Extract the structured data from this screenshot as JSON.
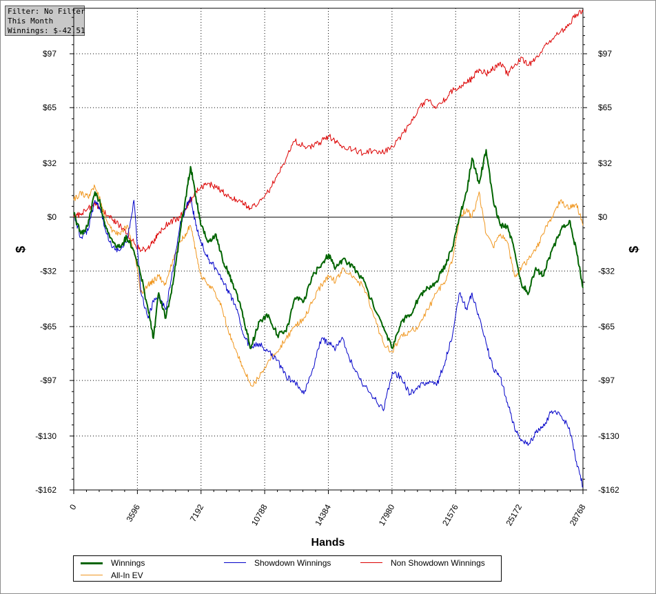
{
  "filter_box": {
    "line1": "Filter: No Filter",
    "line2": "This Month",
    "line3": "Winnings: $-42.51"
  },
  "chart_data": {
    "type": "line",
    "xlabel": "Hands",
    "ylabel": "$",
    "xlim": [
      0,
      28768
    ],
    "ylim": [
      -162,
      124
    ],
    "x_ticks": [
      0,
      3596,
      7192,
      10788,
      14384,
      17980,
      21576,
      25172,
      28768
    ],
    "x_tick_labels": [
      "0",
      "3596",
      "7192",
      "10788",
      "14384",
      "17980",
      "21576",
      "25172",
      "28768"
    ],
    "y_ticks": [
      -162,
      -130,
      -97,
      -65,
      -32,
      0,
      32,
      65,
      97
    ],
    "y_tick_labels": [
      "-$162",
      "-$130",
      "-$97",
      "-$65",
      "-$32",
      "$0",
      "$32",
      "$65",
      "$97"
    ],
    "grid": true,
    "legend_position": "bottom",
    "series": [
      {
        "name": "Winnings",
        "color": "#006400",
        "x": [
          0,
          400,
          800,
          1200,
          1500,
          1800,
          2200,
          2600,
          3000,
          3400,
          3800,
          4200,
          4500,
          4800,
          5200,
          5600,
          6000,
          6300,
          6600,
          6900,
          7200,
          7600,
          8000,
          8400,
          8800,
          9200,
          9600,
          10000,
          10500,
          11000,
          11500,
          12000,
          12500,
          13000,
          13500,
          14000,
          14400,
          14800,
          15200,
          15800,
          16400,
          17000,
          17500,
          18000,
          18500,
          19000,
          19500,
          20000,
          20500,
          21000,
          21400,
          21800,
          22200,
          22500,
          22900,
          23300,
          23700,
          24100,
          24500,
          24900,
          25300,
          25700,
          26100,
          26500,
          27000,
          27500,
          28000,
          28400,
          28768
        ],
        "y": [
          2,
          -10,
          -5,
          15,
          8,
          -5,
          -15,
          -18,
          -12,
          -20,
          -35,
          -55,
          -72,
          -45,
          -60,
          -40,
          -10,
          10,
          30,
          12,
          -5,
          -15,
          -10,
          -25,
          -35,
          -45,
          -60,
          -78,
          -62,
          -58,
          -70,
          -68,
          -48,
          -50,
          -35,
          -28,
          -22,
          -30,
          -25,
          -30,
          -38,
          -55,
          -65,
          -78,
          -62,
          -58,
          -48,
          -42,
          -38,
          -28,
          -18,
          0,
          15,
          35,
          20,
          40,
          10,
          -5,
          -5,
          -20,
          -40,
          -45,
          -30,
          -35,
          -20,
          -8,
          -2,
          -20,
          -42
        ]
      },
      {
        "name": "Showdown Winnings",
        "color": "#0000c8",
        "x": [
          0,
          400,
          800,
          1200,
          1500,
          1800,
          2200,
          2600,
          3000,
          3400,
          3800,
          4200,
          4500,
          4800,
          5200,
          5600,
          6000,
          6300,
          6600,
          6900,
          7200,
          7600,
          8000,
          8400,
          8800,
          9200,
          9600,
          10000,
          10500,
          11000,
          11500,
          12000,
          12500,
          13000,
          13500,
          14000,
          14400,
          14800,
          15200,
          15800,
          16400,
          17000,
          17500,
          18000,
          18500,
          19000,
          19500,
          20000,
          20500,
          21000,
          21400,
          21800,
          22200,
          22500,
          22900,
          23300,
          23700,
          24100,
          24500,
          24900,
          25300,
          25700,
          26100,
          26500,
          27000,
          27500,
          28000,
          28400,
          28768
        ],
        "y": [
          2,
          -12,
          -8,
          10,
          5,
          -8,
          -18,
          -20,
          -15,
          10,
          -45,
          -60,
          -50,
          -48,
          -55,
          -32,
          -5,
          5,
          12,
          -5,
          -15,
          -25,
          -30,
          -38,
          -45,
          -55,
          -70,
          -78,
          -75,
          -80,
          -85,
          -95,
          -98,
          -105,
          -90,
          -72,
          -75,
          -78,
          -72,
          -90,
          -100,
          -108,
          -115,
          -92,
          -95,
          -105,
          -100,
          -98,
          -100,
          -85,
          -70,
          -45,
          -55,
          -45,
          -60,
          -75,
          -90,
          -95,
          -110,
          -125,
          -132,
          -135,
          -128,
          -125,
          -115,
          -118,
          -125,
          -145,
          -160
        ]
      },
      {
        "name": "Non Showdown Winnings",
        "color": "#dc0000",
        "x": [
          0,
          400,
          800,
          1200,
          1500,
          1800,
          2200,
          2600,
          3000,
          3400,
          3800,
          4200,
          4500,
          4800,
          5200,
          5600,
          6000,
          6300,
          6600,
          6900,
          7200,
          7600,
          8000,
          8400,
          8800,
          9200,
          9600,
          10000,
          10500,
          11000,
          11500,
          12000,
          12500,
          13000,
          13500,
          14000,
          14400,
          14800,
          15200,
          15800,
          16400,
          17000,
          17500,
          18000,
          18500,
          19000,
          19500,
          20000,
          20500,
          21000,
          21400,
          21800,
          22200,
          22500,
          22900,
          23300,
          23700,
          24100,
          24500,
          24900,
          25300,
          25700,
          26100,
          26500,
          27000,
          27500,
          28000,
          28400,
          28768
        ],
        "y": [
          0,
          2,
          5,
          8,
          5,
          2,
          -2,
          -5,
          -10,
          -15,
          -20,
          -18,
          -15,
          -10,
          -5,
          -2,
          0,
          5,
          10,
          15,
          18,
          20,
          18,
          15,
          12,
          10,
          8,
          5,
          10,
          15,
          25,
          35,
          45,
          42,
          42,
          45,
          48,
          45,
          42,
          40,
          38,
          40,
          38,
          42,
          48,
          55,
          65,
          70,
          65,
          70,
          75,
          78,
          80,
          82,
          88,
          85,
          88,
          92,
          85,
          90,
          95,
          90,
          95,
          100,
          105,
          110,
          115,
          120,
          122
        ]
      },
      {
        "name": "All-In EV",
        "color": "#f0961e",
        "x": [
          0,
          400,
          800,
          1200,
          1500,
          1800,
          2200,
          2600,
          3000,
          3400,
          3800,
          4200,
          4500,
          4800,
          5200,
          5600,
          6000,
          6300,
          6600,
          6900,
          7200,
          7600,
          8000,
          8400,
          8800,
          9200,
          9600,
          10000,
          10500,
          11000,
          11500,
          12000,
          12500,
          13000,
          13500,
          14000,
          14400,
          14800,
          15200,
          15800,
          16400,
          17000,
          17500,
          18000,
          18500,
          19000,
          19500,
          20000,
          20500,
          21000,
          21400,
          21800,
          22200,
          22500,
          22900,
          23300,
          23700,
          24100,
          24500,
          24900,
          25300,
          25700,
          26100,
          26500,
          27000,
          27500,
          28000,
          28400,
          28768
        ],
        "y": [
          10,
          15,
          12,
          18,
          10,
          0,
          -8,
          -10,
          -5,
          -20,
          -45,
          -40,
          -38,
          -35,
          -40,
          -25,
          -15,
          -10,
          -5,
          -20,
          -35,
          -40,
          -45,
          -55,
          -70,
          -80,
          -90,
          -100,
          -95,
          -85,
          -80,
          -72,
          -65,
          -60,
          -50,
          -40,
          -35,
          -38,
          -30,
          -35,
          -42,
          -60,
          -75,
          -80,
          -70,
          -68,
          -65,
          -55,
          -45,
          -38,
          -25,
          0,
          5,
          0,
          15,
          -10,
          -18,
          -10,
          -15,
          -35,
          -30,
          -25,
          -20,
          -10,
          0,
          10,
          5,
          8,
          -5
        ]
      }
    ]
  }
}
